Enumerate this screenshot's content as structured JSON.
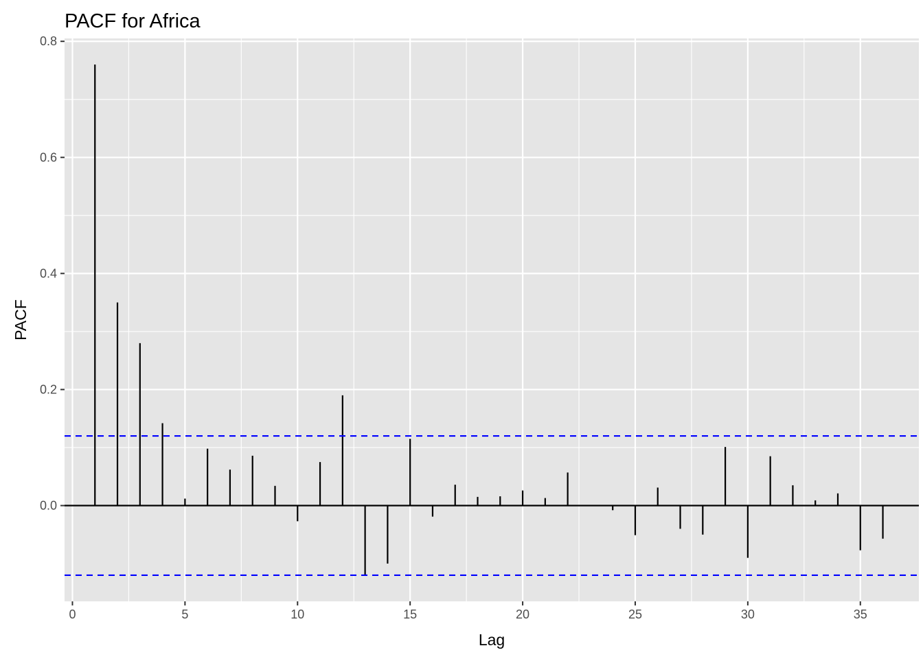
{
  "chart_data": {
    "type": "bar",
    "title": "PACF for Africa",
    "xlabel": "Lag",
    "ylabel": "PACF",
    "xlim": [
      -0.35,
      37.6
    ],
    "ylim": [
      -0.165,
      0.805
    ],
    "x_ticks": [
      0,
      5,
      10,
      15,
      20,
      25,
      30,
      35
    ],
    "x_tick_labels": [
      "0",
      "5",
      "10",
      "15",
      "20",
      "25",
      "30",
      "35"
    ],
    "y_ticks": [
      0.0,
      0.2,
      0.4,
      0.6,
      0.8
    ],
    "y_tick_labels": [
      "0.0",
      "0.2",
      "0.4",
      "0.6",
      "0.8"
    ],
    "grid": true,
    "confidence_bound": 0.12,
    "lags": [
      1,
      2,
      3,
      4,
      5,
      6,
      7,
      8,
      9,
      10,
      11,
      12,
      13,
      14,
      15,
      16,
      17,
      18,
      19,
      20,
      21,
      22,
      23,
      24,
      25,
      26,
      27,
      28,
      29,
      30,
      31,
      32,
      33,
      34,
      35,
      36
    ],
    "values": [
      0.76,
      0.35,
      0.28,
      0.142,
      0.012,
      0.098,
      0.062,
      0.086,
      0.034,
      -0.027,
      0.075,
      0.19,
      -0.12,
      -0.1,
      0.115,
      -0.019,
      0.036,
      0.015,
      0.016,
      0.026,
      0.013,
      0.057,
      0.0,
      -0.008,
      -0.051,
      0.031,
      -0.04,
      -0.05,
      0.101,
      -0.09,
      0.085,
      0.035,
      0.009,
      0.021,
      -0.077,
      -0.057
    ],
    "colors": {
      "panel_background": "#e5e5e5",
      "grid": "#ffffff",
      "bars": "#000000",
      "confidence_line": "#0000ff",
      "tick_text": "#4d4d4d"
    }
  }
}
